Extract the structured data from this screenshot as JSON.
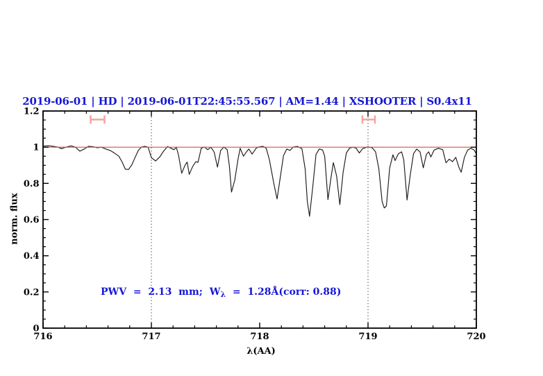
{
  "title": "2019-06-01 | HD | 2019-06-01T22:45:55.567 | AM=1.44 | XSHOOTER | S0.4x11",
  "annotation": {
    "text_before_sub": "PWV  =  2.13  mm;  W",
    "subscript": "λ",
    "text_after_sub": "  =  1.28Å(corr: 0.88)"
  },
  "colors": {
    "header_text": "#1717d6",
    "annotation_text": "#1717d6",
    "continuum_line": "#e14a44",
    "range_marker": "#f5a5a2",
    "spectrum_line": "#1a1a1a",
    "axis": "#000000",
    "background": "#ffffff"
  },
  "chart_data": {
    "type": "line",
    "title": "2019-06-01 | HD | 2019-06-01T22:45:55.567 | AM=1.44 | XSHOOTER | S0.4x11",
    "xlabel": "λ(AA)",
    "ylabel": "norm. flux",
    "xlim": [
      716,
      720
    ],
    "ylim": [
      0,
      1.2
    ],
    "x_major_ticks": [
      716,
      717,
      718,
      719,
      720
    ],
    "x_tick_labels": [
      "716",
      "717",
      "718",
      "719",
      "720"
    ],
    "x_minor_step": 0.2,
    "y_major_ticks": [
      0,
      0.2,
      0.4,
      0.6,
      0.8,
      1.0,
      1.2
    ],
    "y_tick_labels": [
      "0",
      "0.2",
      "0.4",
      "0.6",
      "0.8",
      "1",
      "1.2"
    ],
    "y_minor_step": 0.05,
    "grid": "off",
    "legend": "none",
    "reference_vlines": [
      717,
      719
    ],
    "vline_style": "dotted",
    "continuum_level": 1.0,
    "range_markers": [
      {
        "x_center": 716.503,
        "x_half_width": 0.064,
        "y": 1.153,
        "cap_half_height": 0.023
      },
      {
        "x_center": 719.006,
        "x_half_width": 0.058,
        "y": 1.153,
        "cap_half_height": 0.023
      }
    ],
    "series": [
      {
        "name": "normalized spectrum",
        "points": [
          [
            716.0,
            1.006
          ],
          [
            716.05,
            1.008
          ],
          [
            716.1,
            1.004
          ],
          [
            716.14,
            1.0
          ],
          [
            716.17,
            0.992
          ],
          [
            716.21,
            1.0
          ],
          [
            716.26,
            1.007
          ],
          [
            716.3,
            1.0
          ],
          [
            716.34,
            0.978
          ],
          [
            716.38,
            0.99
          ],
          [
            716.42,
            1.005
          ],
          [
            716.46,
            1.003
          ],
          [
            716.5,
            0.997
          ],
          [
            716.54,
            1.0
          ],
          [
            716.58,
            0.99
          ],
          [
            716.62,
            0.982
          ],
          [
            716.66,
            0.967
          ],
          [
            716.7,
            0.95
          ],
          [
            716.73,
            0.918
          ],
          [
            716.76,
            0.878
          ],
          [
            716.79,
            0.877
          ],
          [
            716.82,
            0.903
          ],
          [
            716.85,
            0.944
          ],
          [
            716.88,
            0.983
          ],
          [
            716.91,
            1.001
          ],
          [
            716.94,
            1.005
          ],
          [
            716.97,
            1.0
          ],
          [
            717.0,
            0.942
          ],
          [
            717.04,
            0.924
          ],
          [
            717.08,
            0.948
          ],
          [
            717.11,
            0.976
          ],
          [
            717.15,
            1.004
          ],
          [
            717.18,
            0.994
          ],
          [
            717.21,
            0.986
          ],
          [
            717.23,
            1.0
          ],
          [
            717.25,
            0.958
          ],
          [
            717.28,
            0.856
          ],
          [
            717.31,
            0.9
          ],
          [
            717.33,
            0.918
          ],
          [
            717.35,
            0.85
          ],
          [
            717.38,
            0.892
          ],
          [
            717.41,
            0.92
          ],
          [
            717.43,
            0.916
          ],
          [
            717.46,
            0.994
          ],
          [
            717.49,
            1.001
          ],
          [
            717.52,
            0.986
          ],
          [
            717.55,
            1.0
          ],
          [
            717.58,
            0.972
          ],
          [
            717.61,
            0.89
          ],
          [
            717.64,
            0.982
          ],
          [
            717.67,
            1.001
          ],
          [
            717.7,
            0.986
          ],
          [
            717.72,
            0.898
          ],
          [
            717.74,
            0.752
          ],
          [
            717.77,
            0.818
          ],
          [
            717.8,
            0.934
          ],
          [
            717.82,
            0.994
          ],
          [
            717.85,
            0.95
          ],
          [
            717.88,
            0.976
          ],
          [
            717.9,
            0.99
          ],
          [
            717.93,
            0.962
          ],
          [
            717.97,
            0.996
          ],
          [
            718.0,
            1.002
          ],
          [
            718.03,
            1.005
          ],
          [
            718.06,
            0.994
          ],
          [
            718.09,
            0.93
          ],
          [
            718.13,
            0.8
          ],
          [
            718.16,
            0.714
          ],
          [
            718.19,
            0.832
          ],
          [
            718.22,
            0.954
          ],
          [
            718.25,
            0.99
          ],
          [
            718.28,
            0.982
          ],
          [
            718.31,
            1.001
          ],
          [
            718.35,
            1.004
          ],
          [
            718.39,
            0.992
          ],
          [
            718.42,
            0.88
          ],
          [
            718.44,
            0.7
          ],
          [
            718.46,
            0.618
          ],
          [
            718.49,
            0.78
          ],
          [
            718.52,
            0.96
          ],
          [
            718.55,
            0.99
          ],
          [
            718.58,
            0.985
          ],
          [
            718.6,
            0.95
          ],
          [
            718.63,
            0.71
          ],
          [
            718.66,
            0.84
          ],
          [
            718.68,
            0.915
          ],
          [
            718.71,
            0.84
          ],
          [
            718.74,
            0.682
          ],
          [
            718.77,
            0.86
          ],
          [
            718.8,
            0.968
          ],
          [
            718.83,
            0.995
          ],
          [
            718.86,
            1.0
          ],
          [
            718.89,
            0.995
          ],
          [
            718.92,
            0.968
          ],
          [
            718.95,
            0.992
          ],
          [
            719.0,
            1.002
          ],
          [
            719.04,
            0.996
          ],
          [
            719.07,
            0.974
          ],
          [
            719.1,
            0.88
          ],
          [
            719.13,
            0.7
          ],
          [
            719.15,
            0.664
          ],
          [
            719.17,
            0.676
          ],
          [
            719.2,
            0.886
          ],
          [
            719.23,
            0.958
          ],
          [
            719.25,
            0.926
          ],
          [
            719.28,
            0.964
          ],
          [
            719.31,
            0.974
          ],
          [
            719.33,
            0.93
          ],
          [
            719.36,
            0.708
          ],
          [
            719.39,
            0.846
          ],
          [
            719.42,
            0.964
          ],
          [
            719.45,
            0.99
          ],
          [
            719.48,
            0.974
          ],
          [
            719.51,
            0.886
          ],
          [
            719.54,
            0.962
          ],
          [
            719.56,
            0.974
          ],
          [
            719.58,
            0.946
          ],
          [
            719.61,
            0.984
          ],
          [
            719.65,
            0.994
          ],
          [
            719.69,
            0.986
          ],
          [
            719.72,
            0.914
          ],
          [
            719.75,
            0.934
          ],
          [
            719.78,
            0.92
          ],
          [
            719.81,
            0.944
          ],
          [
            719.84,
            0.888
          ],
          [
            719.86,
            0.862
          ],
          [
            719.89,
            0.944
          ],
          [
            719.92,
            0.984
          ],
          [
            719.95,
            0.994
          ],
          [
            719.98,
            0.984
          ],
          [
            720.0,
            0.962
          ]
        ]
      }
    ]
  }
}
